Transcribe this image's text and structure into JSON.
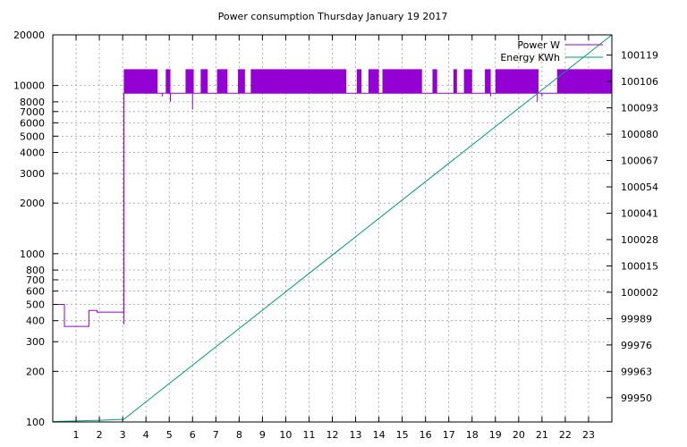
{
  "chart_data": {
    "type": "line",
    "title": "Power consumption Thursday January 19 2017",
    "x_range": [
      0,
      24
    ],
    "x_ticks": [
      1,
      2,
      3,
      4,
      5,
      6,
      7,
      8,
      9,
      10,
      11,
      12,
      13,
      14,
      15,
      16,
      17,
      18,
      19,
      20,
      21,
      22,
      23
    ],
    "y_scale": "log",
    "y_range": [
      100,
      20000
    ],
    "y_ticks": [
      100,
      200,
      300,
      400,
      500,
      600,
      700,
      800,
      1000,
      2000,
      3000,
      4000,
      5000,
      6000,
      7000,
      8000,
      10000,
      20000
    ],
    "y2_range": [
      99938,
      100129
    ],
    "y2_ticks": [
      99950,
      99963,
      99976,
      99989,
      100002,
      100015,
      100028,
      100041,
      100054,
      100067,
      100080,
      100093,
      100106,
      100119
    ],
    "grid": true,
    "legend_position": "top-right",
    "series": [
      {
        "name": "Power W",
        "color": "#9400d3",
        "axis": "y",
        "steps": [
          [
            0,
            500
          ],
          [
            0.5,
            370
          ],
          [
            1.55,
            460
          ],
          [
            1.9,
            450
          ],
          [
            3.05,
            450
          ]
        ],
        "dips": [
          [
            3.05,
            380
          ],
          [
            4.7,
            8600
          ],
          [
            5.05,
            8000
          ],
          [
            6.0,
            7200
          ],
          [
            18.8,
            8600
          ],
          [
            20.8,
            8000
          ],
          [
            21.0,
            8600
          ]
        ],
        "oscillation_bands": [
          [
            3.05,
            4.5
          ],
          [
            4.85,
            5.05
          ],
          [
            5.7,
            6.05
          ],
          [
            6.35,
            6.65
          ],
          [
            7.05,
            7.5
          ],
          [
            7.95,
            8.25
          ],
          [
            8.5,
            12.6
          ],
          [
            13.05,
            13.25
          ],
          [
            13.55,
            14.0
          ],
          [
            14.15,
            15.85
          ],
          [
            16.3,
            16.5
          ],
          [
            17.2,
            17.35
          ],
          [
            17.65,
            18.0
          ],
          [
            18.55,
            18.8
          ],
          [
            19.0,
            20.85
          ],
          [
            21.65,
            24
          ]
        ],
        "oscillation_range": [
          9000,
          12500
        ],
        "baseline_watts": 9000
      },
      {
        "name": "Energy KWh",
        "color": "#009e73",
        "axis": "y2",
        "points": [
          [
            0,
            99938.2
          ],
          [
            1.0,
            99938.5
          ],
          [
            2.0,
            99938.8
          ],
          [
            3.05,
            99939.3
          ],
          [
            24,
            100129
          ]
        ]
      }
    ]
  }
}
